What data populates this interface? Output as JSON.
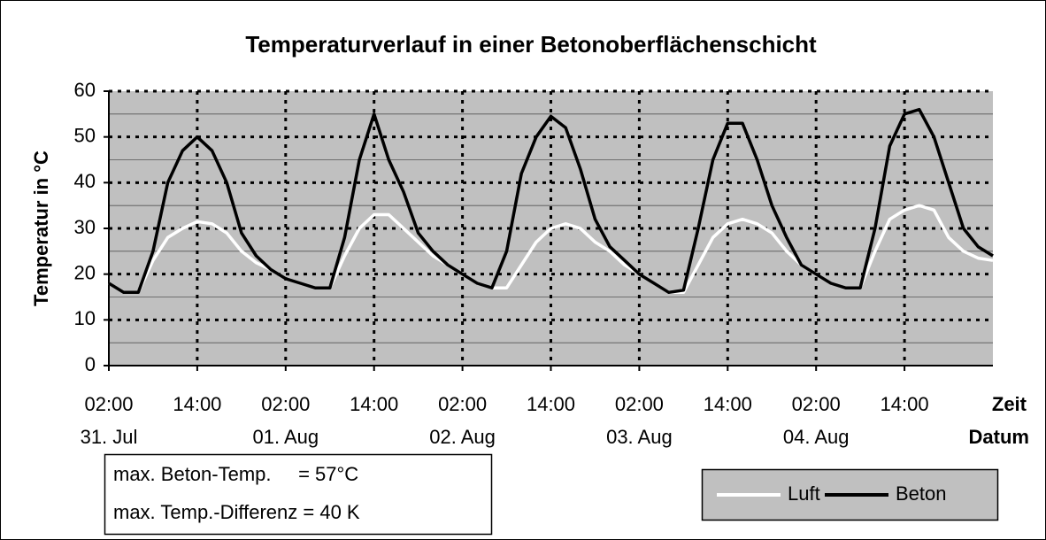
{
  "chart_data": {
    "type": "line",
    "title": "Temperaturverlauf in einer Betonoberflächenschicht",
    "y_label": "Temperatur in °C",
    "x_label": "Zeit",
    "date_axis_label": "Datum",
    "x": [
      0,
      2,
      4,
      6,
      8,
      10,
      12,
      14,
      16,
      18,
      20,
      22,
      24,
      26,
      28,
      30,
      32,
      34,
      36,
      38,
      40,
      42,
      44,
      46,
      48,
      50,
      52,
      54,
      56,
      58,
      60,
      62,
      64,
      66,
      68,
      70,
      72,
      74,
      76,
      78,
      80,
      82,
      84,
      86,
      88,
      90,
      92,
      94,
      96,
      98,
      100,
      102,
      104,
      106,
      108,
      110,
      112,
      114,
      116,
      118,
      120
    ],
    "series": [
      {
        "name": "Luft",
        "color": "#ffffff",
        "values": [
          18,
          16,
          16,
          23,
          28,
          30,
          31.5,
          31,
          29,
          25,
          22.5,
          21,
          19,
          18,
          17,
          17,
          24,
          30,
          33,
          33,
          30,
          27,
          24,
          22,
          20,
          18,
          17,
          17,
          22,
          27,
          30,
          31,
          30,
          27,
          25,
          22,
          20,
          18,
          16,
          16,
          22,
          28,
          31,
          32,
          31,
          29,
          25,
          22,
          20,
          18,
          17,
          17,
          25,
          32,
          34,
          35,
          34,
          28,
          25,
          23.5,
          23
        ]
      },
      {
        "name": "Beton",
        "color": "#000000",
        "values": [
          18,
          16,
          16,
          25,
          40,
          47,
          50,
          47,
          40,
          29,
          24,
          21,
          19,
          18,
          17,
          17,
          28,
          45,
          55,
          45,
          38,
          29,
          25,
          22,
          20,
          18,
          17,
          25,
          42,
          50,
          54.5,
          52,
          43,
          32,
          26,
          23,
          20,
          18,
          16,
          16.5,
          30,
          45,
          53,
          53,
          45,
          35,
          28,
          22,
          20,
          18,
          17,
          17,
          30,
          48,
          55,
          56,
          50,
          40,
          30,
          26,
          24
        ]
      }
    ],
    "xlim": [
      0,
      120
    ],
    "xticks": [
      {
        "value": 0,
        "label": "02:00"
      },
      {
        "value": 12,
        "label": "14:00"
      },
      {
        "value": 24,
        "label": "02:00"
      },
      {
        "value": 36,
        "label": "14:00"
      },
      {
        "value": 48,
        "label": "02:00"
      },
      {
        "value": 60,
        "label": "14:00"
      },
      {
        "value": 72,
        "label": "02:00"
      },
      {
        "value": 84,
        "label": "14:00"
      },
      {
        "value": 96,
        "label": "02:00"
      },
      {
        "value": 108,
        "label": "14:00"
      }
    ],
    "date_ticks": [
      {
        "value": 0,
        "label": "31. Jul"
      },
      {
        "value": 24,
        "label": "01. Aug"
      },
      {
        "value": 48,
        "label": "02. Aug"
      },
      {
        "value": 72,
        "label": "03. Aug"
      },
      {
        "value": 96,
        "label": "04. Aug"
      }
    ],
    "ylim": [
      0,
      60
    ],
    "yticks": [
      0,
      10,
      20,
      30,
      40,
      50,
      60
    ],
    "minor_yticks": [
      5,
      15,
      25,
      35,
      45,
      55
    ],
    "grid": true,
    "annotations": [
      "max. Beton-Temp.     = 57°C",
      "max. Temp.-Differenz = 40 K"
    ],
    "legend": "lower right"
  }
}
